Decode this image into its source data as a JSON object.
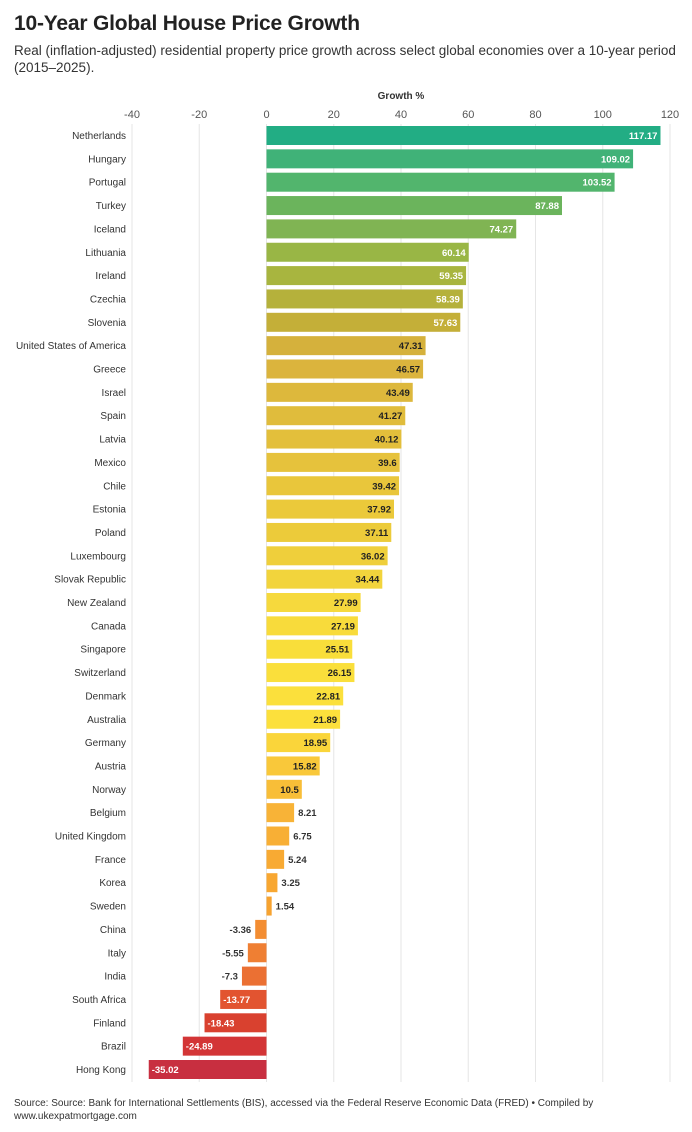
{
  "header": {
    "title": "10-Year Global House Price Growth",
    "subtitle": "Real (inflation-adjusted) residential property price growth across select global economies over a 10-year period (2015–2025)."
  },
  "footer": {
    "source": "Source: Source: Bank for International Settlements (BIS), accessed via the Federal Reserve Economic Data (FRED) • Compiled by www.ukexpatmortgage.com"
  },
  "chart_data": {
    "type": "bar",
    "orientation": "horizontal",
    "xlabel": "Growth %",
    "xlim": [
      -40,
      120
    ],
    "xticks": [
      -40,
      -20,
      0,
      20,
      40,
      60,
      80,
      100,
      120
    ],
    "grid": true,
    "categories": [
      "Netherlands",
      "Hungary",
      "Portugal",
      "Turkey",
      "Iceland",
      "Lithuania",
      "Ireland",
      "Czechia",
      "Slovenia",
      "United States of America",
      "Greece",
      "Israel",
      "Spain",
      "Latvia",
      "Mexico",
      "Chile",
      "Estonia",
      "Poland",
      "Luxembourg",
      "Slovak Republic",
      "New Zealand",
      "Canada",
      "Singapore",
      "Switzerland",
      "Denmark",
      "Australia",
      "Germany",
      "Austria",
      "Norway",
      "Belgium",
      "United Kingdom",
      "France",
      "Korea",
      "Sweden",
      "China",
      "Italy",
      "India",
      "South Africa",
      "Finland",
      "Brazil",
      "Hong Kong"
    ],
    "values": [
      117.17,
      109.02,
      103.52,
      87.88,
      74.27,
      60.14,
      59.35,
      58.39,
      57.63,
      47.31,
      46.57,
      43.49,
      41.27,
      40.12,
      39.6,
      39.42,
      37.92,
      37.11,
      36.02,
      34.44,
      27.99,
      27.19,
      25.51,
      26.15,
      22.81,
      21.89,
      18.95,
      15.82,
      10.5,
      8.21,
      6.75,
      5.24,
      3.25,
      1.54,
      -3.36,
      -5.55,
      -7.3,
      -13.77,
      -18.43,
      -24.89,
      -35.02
    ],
    "labels": [
      "117.17",
      "109.02",
      "103.52",
      "87.88",
      "74.27",
      "60.14",
      "59.35",
      "58.39",
      "57.63",
      "47.31",
      "46.57",
      "43.49",
      "41.27",
      "40.12",
      "39.6",
      "39.42",
      "37.92",
      "37.11",
      "36.02",
      "34.44",
      "27.99",
      "27.19",
      "25.51",
      "26.15",
      "22.81",
      "21.89",
      "18.95",
      "15.82",
      "10.5",
      "8.21",
      "6.75",
      "5.24",
      "3.25",
      "1.54",
      "-3.36",
      "-5.55",
      "-7.3",
      "-13.77",
      "-18.43",
      "-24.89",
      "-35.02"
    ],
    "colors": [
      "#22ad84",
      "#40b278",
      "#52b56d",
      "#6bb45c",
      "#80b453",
      "#99b645",
      "#a8b53f",
      "#b5b13b",
      "#c4af38",
      "#d5b13c",
      "#dbb43d",
      "#ddb83c",
      "#e0bc3c",
      "#e3bf3b",
      "#e6c23c",
      "#e9c63b",
      "#ebc93a",
      "#eccb3a",
      "#efcf3b",
      "#f2d43c",
      "#f6d93d",
      "#f8db3b",
      "#f9de3a",
      "#fadf3b",
      "#fbe03c",
      "#fce03c",
      "#fad53a",
      "#f9c83a",
      "#f8be38",
      "#f8b337",
      "#f8af35",
      "#f8aa33",
      "#f8a731",
      "#f7a330",
      "#f38d32",
      "#ef7f33",
      "#eb7033",
      "#e25430",
      "#d9412f",
      "#d33536",
      "#c82f40"
    ],
    "label_color_rule": "white label on darker bars, dark label on light bars, outside label for small values"
  }
}
